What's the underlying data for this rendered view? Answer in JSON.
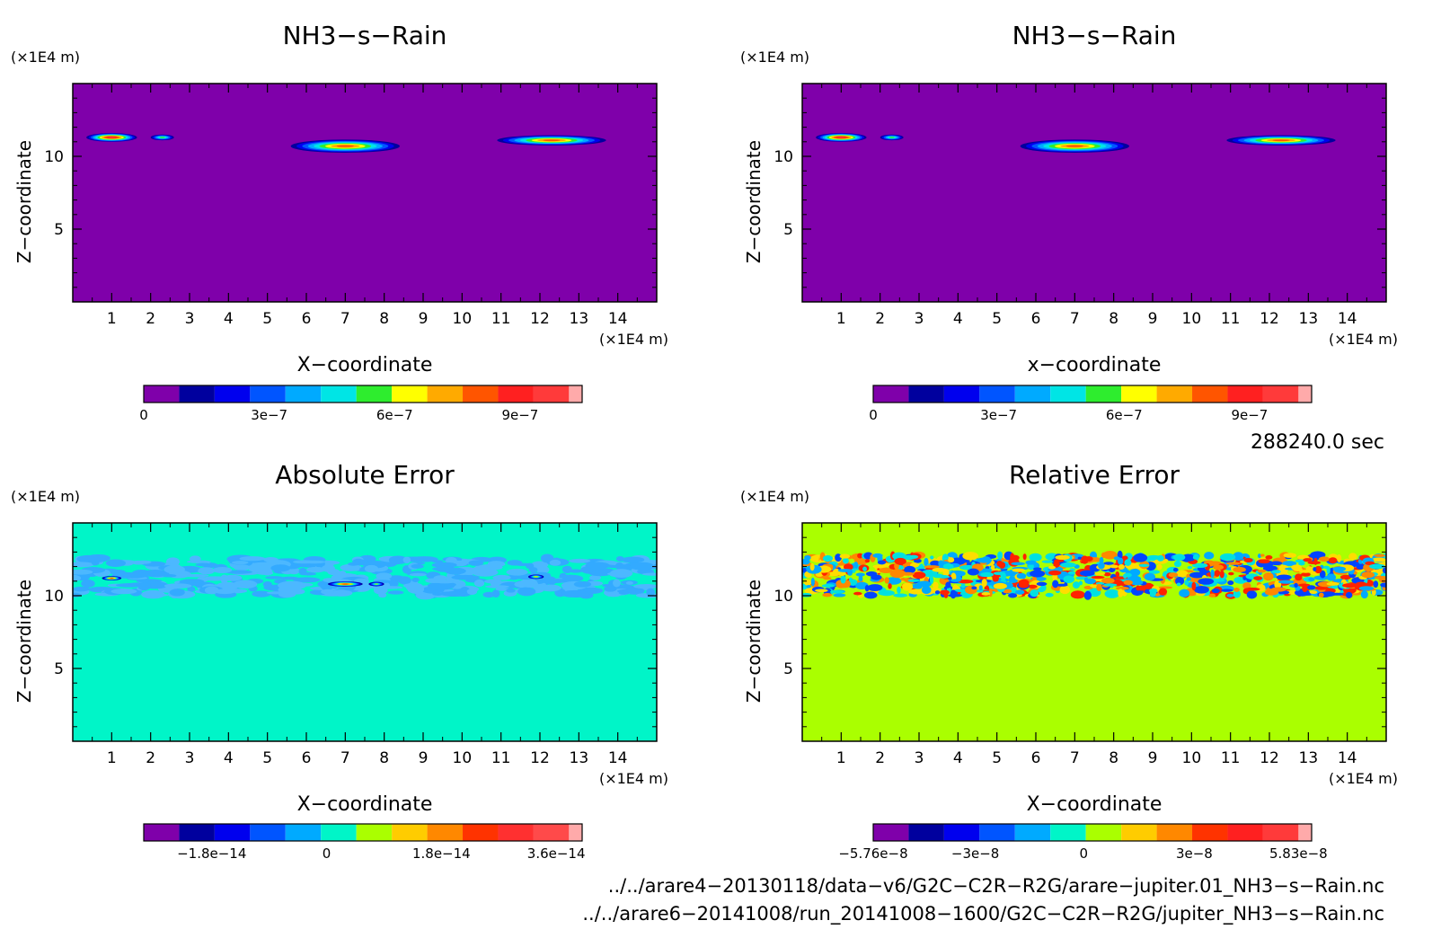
{
  "chart_data": [
    {
      "type": "heatmap",
      "id": "p1",
      "title": "NH3−s−Rain",
      "xlabel": "X−coordinate",
      "ylabel": "Z−coordinate",
      "xunit": "(×1E4 m)",
      "yunit": "(×1E4 m)",
      "xlim": [
        0,
        15
      ],
      "ylim": [
        0,
        15
      ],
      "xticks": [
        "1",
        "2",
        "3",
        "4",
        "5",
        "6",
        "7",
        "8",
        "9",
        "10",
        "11",
        "12",
        "13",
        "14"
      ],
      "yticks": [
        "5",
        "10"
      ],
      "background_color": "#7f00aa",
      "colorbar": {
        "colors": [
          "#7f00aa",
          "#00009e",
          "#0000ee",
          "#0055ff",
          "#00aaff",
          "#00e5e5",
          "#2eed2e",
          "#ffff00",
          "#ffaa00",
          "#ff5500",
          "#ff2020",
          "#ff3a3a",
          "#ffaaaa"
        ],
        "ticks": [
          {
            "label": "0",
            "pos": 0.0
          },
          {
            "label": "3e−7",
            "pos": 0.295
          },
          {
            "label": "6e−7",
            "pos": 0.59
          },
          {
            "label": "9e−7",
            "pos": 0.885
          }
        ]
      },
      "features": [
        {
          "x": 1.0,
          "z": 11.3,
          "w": 1.3,
          "h": 0.6,
          "peak": 1.0
        },
        {
          "x": 2.3,
          "z": 11.3,
          "w": 0.6,
          "h": 0.4,
          "peak": 0.5
        },
        {
          "x": 7.0,
          "z": 10.7,
          "w": 2.8,
          "h": 0.9,
          "peak": 0.85
        },
        {
          "x": 12.3,
          "z": 11.1,
          "w": 2.8,
          "h": 0.7,
          "peak": 0.85
        }
      ]
    },
    {
      "type": "heatmap",
      "id": "p2",
      "title": "NH3−s−Rain",
      "xlabel": "x−coordinate",
      "ylabel": "Z−coordinate",
      "xunit": "(×1E4 m)",
      "yunit": "(×1E4 m)",
      "xlim": [
        0,
        15
      ],
      "ylim": [
        0,
        15
      ],
      "xticks": [
        "1",
        "2",
        "3",
        "4",
        "5",
        "6",
        "7",
        "8",
        "9",
        "10",
        "11",
        "12",
        "13",
        "14"
      ],
      "yticks": [
        "5",
        "10"
      ],
      "background_color": "#7f00aa",
      "colorbar": {
        "colors": [
          "#7f00aa",
          "#00009e",
          "#0000ee",
          "#0055ff",
          "#00aaff",
          "#00e5e5",
          "#2eed2e",
          "#ffff00",
          "#ffaa00",
          "#ff5500",
          "#ff2020",
          "#ff3a3a",
          "#ffaaaa"
        ],
        "ticks": [
          {
            "label": "0",
            "pos": 0.0
          },
          {
            "label": "3e−7",
            "pos": 0.295
          },
          {
            "label": "6e−7",
            "pos": 0.59
          },
          {
            "label": "9e−7",
            "pos": 0.885
          }
        ]
      },
      "features": [
        {
          "x": 1.0,
          "z": 11.3,
          "w": 1.3,
          "h": 0.6,
          "peak": 1.0
        },
        {
          "x": 2.3,
          "z": 11.3,
          "w": 0.6,
          "h": 0.4,
          "peak": 0.5
        },
        {
          "x": 7.0,
          "z": 10.7,
          "w": 2.8,
          "h": 0.9,
          "peak": 0.85
        },
        {
          "x": 12.3,
          "z": 11.1,
          "w": 2.8,
          "h": 0.7,
          "peak": 0.85
        }
      ]
    },
    {
      "type": "heatmap",
      "id": "p3",
      "title": "Absolute Error",
      "xlabel": "X−coordinate",
      "ylabel": "Z−coordinate",
      "xunit": "(×1E4 m)",
      "yunit": "(×1E4 m)",
      "xlim": [
        0,
        15
      ],
      "ylim": [
        0,
        15
      ],
      "xticks": [
        "1",
        "2",
        "3",
        "4",
        "5",
        "6",
        "7",
        "8",
        "9",
        "10",
        "11",
        "12",
        "13",
        "14"
      ],
      "yticks": [
        "5",
        "10"
      ],
      "background_color": "#00f5c8",
      "band": {
        "zmin": 10.0,
        "zmax": 12.6,
        "colors": [
          "#33aaff",
          "#4cb8ff"
        ]
      },
      "colorbar": {
        "colors": [
          "#7f00aa",
          "#00009e",
          "#0000ee",
          "#0055ff",
          "#00aaff",
          "#00f5c8",
          "#aaff00",
          "#ffcc00",
          "#ff8800",
          "#ff3300",
          "#ff3030",
          "#ff4a4a",
          "#ffaaaa"
        ],
        "ticks": [
          {
            "label": "−1.8e−14",
            "pos": 0.16
          },
          {
            "label": "0",
            "pos": 0.43
          },
          {
            "label": "1.8e−14",
            "pos": 0.7
          },
          {
            "label": "3.6e−14",
            "pos": 0.97
          }
        ]
      },
      "features": [
        {
          "x": 1.0,
          "z": 11.2,
          "w": 0.5,
          "h": 0.3,
          "peak": 0.8
        },
        {
          "x": 7.0,
          "z": 10.8,
          "w": 0.9,
          "h": 0.35,
          "peak": 0.8
        },
        {
          "x": 7.8,
          "z": 10.8,
          "w": 0.4,
          "h": 0.3,
          "peak": 0.5
        },
        {
          "x": 11.9,
          "z": 11.3,
          "w": 0.4,
          "h": 0.3,
          "peak": 0.6
        }
      ]
    },
    {
      "type": "heatmap",
      "id": "p4",
      "title": "Relative Error",
      "xlabel": "X−coordinate",
      "ylabel": "Z−coordinate",
      "xunit": "(×1E4 m)",
      "yunit": "(×1E4 m)",
      "xlim": [
        0,
        15
      ],
      "ylim": [
        0,
        15
      ],
      "xticks": [
        "1",
        "2",
        "3",
        "4",
        "5",
        "6",
        "7",
        "8",
        "9",
        "10",
        "11",
        "12",
        "13",
        "14"
      ],
      "yticks": [
        "5",
        "10"
      ],
      "background_color": "#aaff00",
      "band": {
        "zmin": 10.0,
        "zmax": 12.8,
        "colors": [
          "#0044ff",
          "#00aaff",
          "#ff2200",
          "#ff8800",
          "#ffdd00",
          "#00e0e0"
        ]
      },
      "colorbar": {
        "colors": [
          "#7f00aa",
          "#00009e",
          "#0000ee",
          "#0055ff",
          "#00aaff",
          "#00f5c8",
          "#aaff00",
          "#ffcc00",
          "#ff8800",
          "#ff3300",
          "#ff2020",
          "#ff3a3a",
          "#ffaaaa"
        ],
        "ticks": [
          {
            "label": "−5.76e−8",
            "pos": 0.0
          },
          {
            "label": "−3e−8",
            "pos": 0.24
          },
          {
            "label": "0",
            "pos": 0.495
          },
          {
            "label": "3e−8",
            "pos": 0.755
          },
          {
            "label": "5.83e−8",
            "pos": 1.0
          }
        ]
      }
    }
  ],
  "time_label": "288240.0 sec",
  "files": [
    "../../arare4−20130118/data−v6/G2C−C2R−R2G/arare−jupiter.01_NH3−s−Rain.nc",
    "../../arare6−20141008/run_20141008−1600/G2C−C2R−R2G/jupiter_NH3−s−Rain.nc"
  ]
}
